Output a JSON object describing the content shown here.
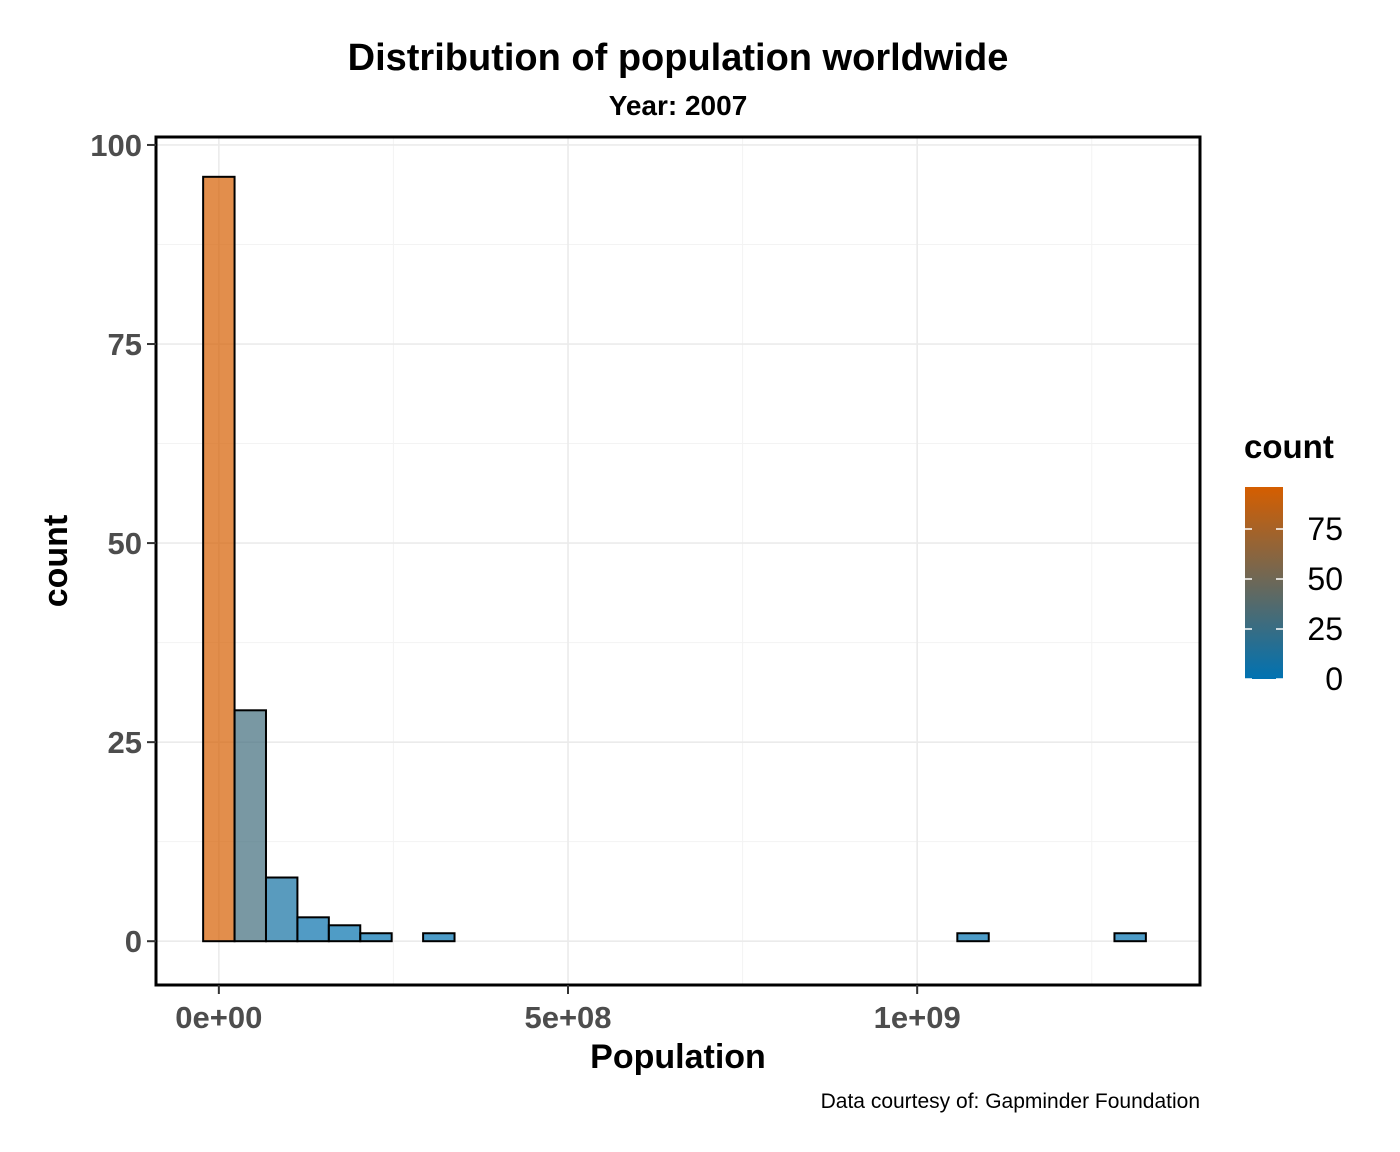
{
  "chart_data": {
    "type": "bar",
    "title": "Distribution of population worldwide",
    "subtitle": "Year: 2007",
    "xlabel": "Population",
    "ylabel": "count",
    "caption": "Data courtesy of: Gapminder Foundation",
    "bin_width": 45000000,
    "bins": [
      {
        "center": 0,
        "count": 96
      },
      {
        "center": 45000000,
        "count": 29
      },
      {
        "center": 90000000,
        "count": 8
      },
      {
        "center": 135000000,
        "count": 3
      },
      {
        "center": 180000000,
        "count": 2
      },
      {
        "center": 225000000,
        "count": 1
      },
      {
        "center": 315000000,
        "count": 1
      },
      {
        "center": 1080000000,
        "count": 1
      },
      {
        "center": 1305000000,
        "count": 1
      }
    ],
    "xlim": [
      -90000000,
      1405000000
    ],
    "ylim": [
      -5.5,
      101
    ],
    "x_ticks": [
      {
        "value": 0,
        "label": "0e+00"
      },
      {
        "value": 500000000,
        "label": "5e+08"
      },
      {
        "value": 1000000000,
        "label": "1e+09"
      }
    ],
    "y_ticks": [
      {
        "value": 0,
        "label": "0"
      },
      {
        "value": 25,
        "label": "25"
      },
      {
        "value": 50,
        "label": "50"
      },
      {
        "value": 75,
        "label": "75"
      },
      {
        "value": 100,
        "label": "100"
      }
    ],
    "grid": true,
    "legend": {
      "title": "count",
      "position": "right",
      "type": "colorbar",
      "range": [
        0,
        96
      ],
      "ticks": [
        {
          "value": 0,
          "label": "0"
        },
        {
          "value": 25,
          "label": "25"
        },
        {
          "value": 50,
          "label": "50"
        },
        {
          "value": 75,
          "label": "75"
        }
      ],
      "low_color": "#0072b2",
      "high_color": "#d55e00"
    },
    "bar_fill_opacity": 0.7,
    "bar_outline_color": "#000000"
  }
}
